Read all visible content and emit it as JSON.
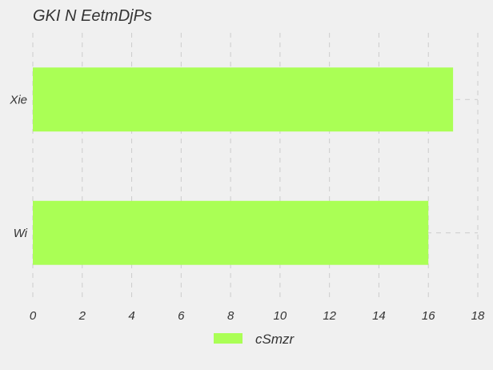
{
  "chart_data": {
    "type": "bar",
    "orientation": "horizontal",
    "title": "GKI N EetmDjPs",
    "categories": [
      "Xie",
      "Wi"
    ],
    "series": [
      {
        "name": "cSmzr",
        "values": [
          17,
          16
        ]
      }
    ],
    "xlim": [
      0,
      18
    ],
    "x_ticks": [
      0,
      2,
      4,
      6,
      8,
      10,
      12,
      14,
      16,
      18
    ],
    "xlabel": "",
    "ylabel": "",
    "grid": true,
    "grid_style": "dashed",
    "legend_position": "bottom-center",
    "colors": {
      "background": "#f0f0f0",
      "bar": "#aaff55",
      "grid": "#cccccc",
      "text": "#333333"
    }
  }
}
